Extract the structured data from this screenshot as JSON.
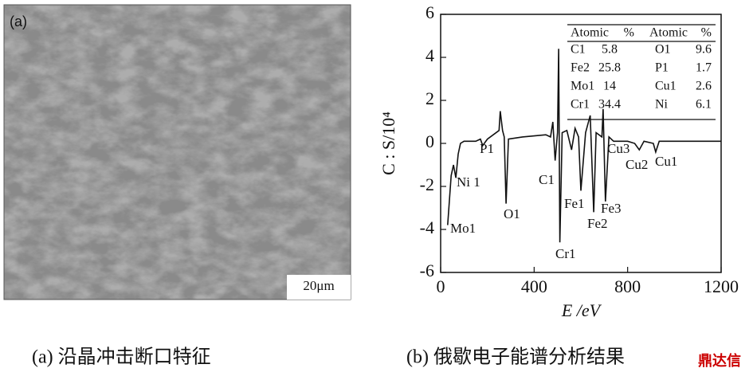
{
  "panel_a": {
    "label": "(a)",
    "scale_bar": "20μm",
    "caption": "(a)  沿晶冲击断口特征"
  },
  "chart_data": {
    "type": "line",
    "caption": "(b)  俄歇电子能谱分析结果",
    "xlabel": "E /eV",
    "ylabel": "C : S/10⁴",
    "x": [
      30,
      45,
      55,
      65,
      75,
      85,
      100,
      150,
      170,
      180,
      200,
      250,
      255,
      265,
      272,
      280,
      290,
      350,
      450,
      470,
      480,
      490,
      500,
      505,
      510,
      520,
      540,
      560,
      575,
      590,
      600,
      620,
      640,
      655,
      665,
      690,
      695,
      705,
      720,
      740,
      800,
      830,
      850,
      870,
      910,
      920,
      935,
      1200
    ],
    "series": [
      {
        "color": "#111111",
        "values": [
          -3.8,
          -1.5,
          -1.0,
          -1.6,
          -0.5,
          0,
          0.1,
          0.1,
          0.2,
          -0.1,
          0.2,
          0.6,
          1.5,
          0.6,
          0.3,
          -2.8,
          0.2,
          0.3,
          0.4,
          0.3,
          1.0,
          -0.8,
          0.5,
          4.4,
          -4.6,
          0.5,
          0.6,
          -0.3,
          0.7,
          0.3,
          -2.2,
          0.5,
          1.3,
          -3.2,
          0.5,
          0.3,
          1.6,
          -2.7,
          0.3,
          0.1,
          0.1,
          0.0,
          -0.3,
          0.1,
          0.0,
          -0.4,
          0.1,
          0.1
        ]
      }
    ],
    "xlim": [
      0,
      1200
    ],
    "xticks": [
      0,
      400,
      800,
      1200
    ],
    "ylim": [
      -6,
      6
    ],
    "yticks": [
      -6,
      -4,
      -2,
      0,
      2,
      4,
      6
    ],
    "annotations": [
      "Mo1",
      "Ni 1",
      "P1",
      "O1",
      "C1",
      "Cr1",
      "Fe1",
      "Fe2",
      "Fe3",
      "Cu3",
      "Cu2",
      "Cu1"
    ],
    "table": {
      "header": [
        "Atomic",
        "%",
        "Atomic",
        "%"
      ],
      "rows": [
        [
          "C1",
          "5.8",
          "O1",
          "9.6"
        ],
        [
          "Fe2",
          "25.8",
          "P1",
          "1.7"
        ],
        [
          "Mo1",
          "14",
          "Cu1",
          "2.6"
        ],
        [
          "Cr1",
          "34.4",
          "Ni",
          "6.1"
        ]
      ]
    }
  },
  "watermark": "鼎达信"
}
